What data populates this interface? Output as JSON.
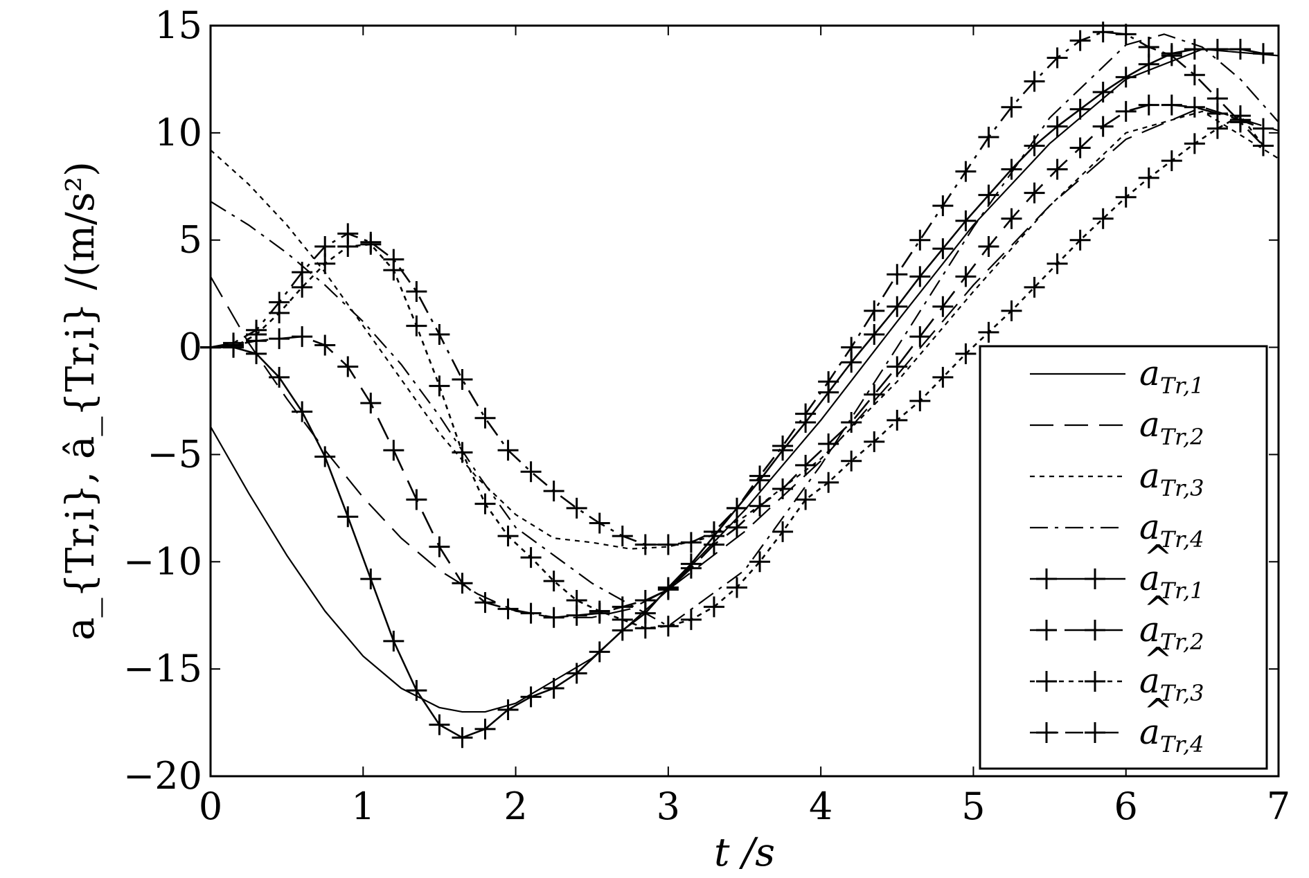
{
  "chart_data": {
    "type": "line",
    "xlabel": "t /s",
    "ylabel": "a_{Tr,i}, â_{Tr,i} /(m/s²)",
    "xlim": [
      0,
      7
    ],
    "ylim": [
      -20,
      15
    ],
    "xticks": [
      "0",
      "1",
      "2",
      "3",
      "4",
      "5",
      "6",
      "7"
    ],
    "yticks": [
      "15",
      "10",
      "5",
      "0",
      "−5",
      "−10",
      "−15",
      "−20"
    ],
    "xtick_values": [
      0,
      1,
      2,
      3,
      4,
      5,
      6,
      7
    ],
    "ytick_values": [
      15,
      10,
      5,
      0,
      -5,
      -10,
      -15,
      -20
    ],
    "grid": false,
    "legend_position": "lower-right",
    "series": [
      {
        "name": "a_{Tr,1}",
        "legend_main": "a",
        "legend_sub": "Tr,1",
        "hat": false,
        "dash": "solid",
        "marker": "none",
        "x": [
          0,
          0.25,
          0.5,
          0.75,
          1.0,
          1.25,
          1.5,
          1.65,
          1.8,
          2.0,
          2.5,
          3.0,
          3.5,
          4.0,
          4.5,
          5.0,
          5.5,
          6.0,
          6.5,
          7.0
        ],
        "y": [
          -3.7,
          -6.8,
          -9.7,
          -12.3,
          -14.4,
          -15.9,
          -16.8,
          -17.0,
          -17.0,
          -16.6,
          -14.5,
          -11.3,
          -7.6,
          -3.4,
          1.2,
          5.7,
          9.5,
          12.5,
          13.9,
          13.6
        ]
      },
      {
        "name": "a_{Tr,2}",
        "legend_main": "a",
        "legend_sub": "Tr,2",
        "hat": false,
        "dash": "long-dash",
        "marker": "none",
        "x": [
          0,
          0.25,
          0.5,
          0.75,
          1.0,
          1.25,
          1.5,
          1.75,
          2.0,
          2.25,
          2.5,
          2.75,
          3.0,
          3.5,
          4.0,
          4.5,
          5.0,
          5.5,
          6.0,
          6.5,
          7.0
        ],
        "y": [
          3.3,
          0.2,
          -2.4,
          -4.8,
          -7.0,
          -8.9,
          -10.4,
          -11.5,
          -12.3,
          -12.6,
          -12.6,
          -12.2,
          -11.3,
          -8.6,
          -5.3,
          -1.3,
          2.9,
          6.6,
          9.7,
          11.2,
          10.1
        ]
      },
      {
        "name": "a_{Tr,3}",
        "legend_main": "a",
        "legend_sub": "Tr,3",
        "hat": false,
        "dash": "dotted",
        "marker": "none",
        "x": [
          0,
          0.25,
          0.5,
          0.75,
          1.0,
          1.25,
          1.5,
          1.75,
          2.0,
          2.25,
          2.5,
          2.75,
          3.0,
          3.25,
          3.5,
          4.0,
          4.5,
          5.0,
          5.5,
          6.0,
          6.5,
          7.0
        ],
        "y": [
          9.2,
          7.6,
          5.7,
          3.5,
          1.0,
          -1.5,
          -4.0,
          -6.1,
          -7.8,
          -8.9,
          -9.1,
          -9.4,
          -9.3,
          -8.9,
          -7.9,
          -5.2,
          -1.6,
          2.6,
          6.6,
          10.0,
          11.0,
          8.8
        ]
      },
      {
        "name": "a_{Tr,4}",
        "legend_main": "a",
        "legend_sub": "Tr,4",
        "hat": false,
        "dash": "dash-dot",
        "marker": "none",
        "x": [
          0,
          0.25,
          0.5,
          0.75,
          1.0,
          1.25,
          1.5,
          1.75,
          2.0,
          2.5,
          3.0,
          3.5,
          4.0,
          4.5,
          5.0,
          5.5,
          6.0,
          6.25,
          6.5,
          6.75,
          7.0
        ],
        "y": [
          6.8,
          5.7,
          4.4,
          2.9,
          1.2,
          -0.8,
          -3.2,
          -5.9,
          -8.4,
          -11.0,
          -13.0,
          -10.4,
          -5.5,
          0.0,
          5.6,
          10.7,
          14.1,
          14.6,
          14.0,
          12.5,
          10.5
        ]
      },
      {
        "name": "â_{Tr,1}",
        "legend_main": "a",
        "legend_sub": "Tr,1",
        "hat": true,
        "dash": "solid",
        "marker": "plus",
        "x": [
          0,
          0.15,
          0.3,
          0.45,
          0.6,
          0.75,
          0.9,
          1.05,
          1.2,
          1.35,
          1.5,
          1.65,
          1.8,
          1.95,
          2.1,
          2.25,
          2.4,
          2.55,
          2.7,
          2.85,
          3.0,
          3.15,
          3.3,
          3.45,
          3.6,
          3.75,
          3.9,
          4.05,
          4.2,
          4.35,
          4.5,
          4.65,
          4.8,
          4.95,
          5.1,
          5.25,
          5.4,
          5.55,
          5.7,
          5.85,
          6.0,
          6.15,
          6.3,
          6.45,
          6.6,
          6.75,
          6.9
        ],
        "y": [
          0,
          0,
          -0.3,
          -1.4,
          -3.0,
          -5.1,
          -7.9,
          -10.8,
          -13.7,
          -16.0,
          -17.6,
          -18.2,
          -17.8,
          -16.9,
          -16.3,
          -15.9,
          -15.2,
          -14.2,
          -13.2,
          -12.4,
          -11.2,
          -10.1,
          -8.8,
          -7.5,
          -6.2,
          -4.8,
          -3.5,
          -2.1,
          -0.7,
          0.6,
          1.9,
          3.3,
          4.6,
          5.9,
          7.1,
          8.3,
          9.4,
          10.3,
          11.1,
          11.9,
          12.6,
          13.2,
          13.7,
          13.9,
          13.9,
          13.9,
          13.7
        ]
      },
      {
        "name": "â_{Tr,2}",
        "legend_main": "a",
        "legend_sub": "Tr,2",
        "hat": true,
        "dash": "long-dash",
        "marker": "plus",
        "x": [
          0,
          0.15,
          0.3,
          0.45,
          0.6,
          0.75,
          0.9,
          1.05,
          1.2,
          1.35,
          1.5,
          1.65,
          1.8,
          1.95,
          2.1,
          2.25,
          2.4,
          2.55,
          2.7,
          2.85,
          3.0,
          3.15,
          3.3,
          3.45,
          3.6,
          3.75,
          3.9,
          4.05,
          4.2,
          4.35,
          4.5,
          4.65,
          4.8,
          4.95,
          5.1,
          5.25,
          5.4,
          5.55,
          5.7,
          5.85,
          6.0,
          6.15,
          6.3,
          6.45,
          6.6,
          6.75,
          6.9
        ],
        "y": [
          0,
          0.1,
          0.3,
          0.4,
          0.5,
          0.1,
          -0.9,
          -2.6,
          -4.8,
          -7.1,
          -9.3,
          -11.0,
          -11.9,
          -12.2,
          -12.4,
          -12.6,
          -12.5,
          -12.4,
          -12.1,
          -11.8,
          -11.3,
          -10.3,
          -9.2,
          -8.4,
          -7.4,
          -6.6,
          -5.5,
          -4.5,
          -3.5,
          -2.2,
          -0.9,
          0.5,
          1.9,
          3.3,
          4.7,
          6.0,
          7.2,
          8.3,
          9.3,
          10.3,
          11.0,
          11.3,
          11.3,
          11.2,
          10.9,
          10.6,
          10.2
        ]
      },
      {
        "name": "â_{Tr,3}",
        "legend_main": "a",
        "legend_sub": "Tr,3",
        "hat": true,
        "dash": "dotted",
        "marker": "plus",
        "x": [
          0,
          0.15,
          0.3,
          0.45,
          0.6,
          0.75,
          0.9,
          1.05,
          1.2,
          1.35,
          1.5,
          1.65,
          1.8,
          1.95,
          2.1,
          2.25,
          2.4,
          2.55,
          2.7,
          2.85,
          3.0,
          3.15,
          3.3,
          3.45,
          3.6,
          3.75,
          3.9,
          4.05,
          4.2,
          4.35,
          4.5,
          4.65,
          4.8,
          4.95,
          5.1,
          5.25,
          5.4,
          5.55,
          5.7,
          5.85,
          6.0,
          6.15,
          6.3,
          6.45,
          6.6,
          6.75,
          6.9
        ],
        "y": [
          0,
          0,
          0.6,
          1.6,
          2.8,
          3.9,
          4.7,
          4.8,
          3.6,
          1.0,
          -1.8,
          -4.9,
          -7.3,
          -8.8,
          -9.8,
          -10.9,
          -11.8,
          -12.3,
          -12.7,
          -13.1,
          -13.0,
          -12.7,
          -12.1,
          -11.2,
          -10.0,
          -8.6,
          -7.1,
          -6.3,
          -5.3,
          -4.4,
          -3.4,
          -2.5,
          -1.4,
          -0.3,
          0.7,
          1.7,
          2.8,
          3.9,
          5.0,
          6.0,
          7.0,
          7.9,
          8.7,
          9.5,
          10.2,
          10.8,
          9.4
        ]
      },
      {
        "name": "â_{Tr,4}",
        "legend_main": "a",
        "legend_sub": "Tr,4",
        "hat": true,
        "dash": "dash-dot",
        "marker": "plus",
        "x": [
          0,
          0.15,
          0.3,
          0.45,
          0.6,
          0.75,
          0.9,
          1.05,
          1.2,
          1.35,
          1.5,
          1.65,
          1.8,
          1.95,
          2.1,
          2.25,
          2.4,
          2.55,
          2.7,
          2.85,
          3.0,
          3.15,
          3.3,
          3.45,
          3.6,
          3.75,
          3.9,
          4.05,
          4.2,
          4.35,
          4.5,
          4.65,
          4.8,
          4.95,
          5.1,
          5.25,
          5.4,
          5.55,
          5.7,
          5.85,
          6.0,
          6.15,
          6.3,
          6.45,
          6.6,
          6.75,
          6.9
        ],
        "y": [
          0,
          0.2,
          0.8,
          2.1,
          3.5,
          4.7,
          5.3,
          4.9,
          4.1,
          2.6,
          0.6,
          -1.5,
          -3.3,
          -4.8,
          -5.8,
          -6.7,
          -7.5,
          -8.2,
          -8.8,
          -9.2,
          -9.2,
          -9.1,
          -8.6,
          -7.5,
          -6.0,
          -4.6,
          -3.1,
          -1.6,
          0.0,
          1.7,
          3.4,
          5.0,
          6.6,
          8.2,
          9.8,
          11.2,
          12.4,
          13.5,
          14.3,
          14.7,
          14.6,
          14.0,
          13.6,
          12.7,
          11.6,
          10.5,
          9.4
        ]
      }
    ]
  }
}
